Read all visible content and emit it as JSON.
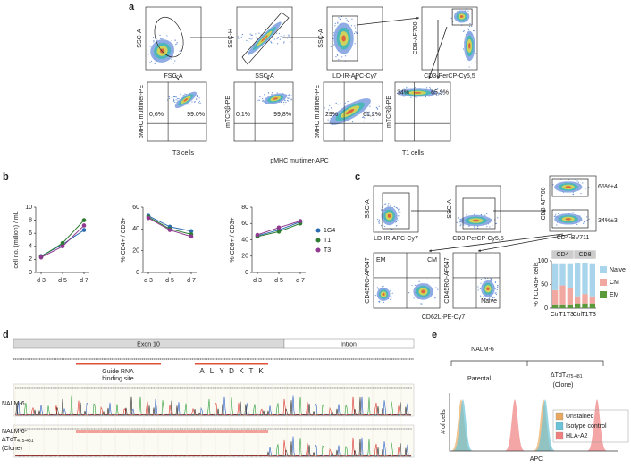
{
  "figure": {
    "a": {
      "label": "a",
      "plots": [
        {
          "y": "SSC-A",
          "x": "FSC-A"
        },
        {
          "y": "SSC-H",
          "x": "SSC-A"
        },
        {
          "y": "SSC-A",
          "x": "LD-IR-APC-Cy7"
        },
        {
          "y": "CD8-AF700",
          "x": "CD3-PerCP-Cy5,5"
        },
        {
          "y": "pMHC multimer-PE",
          "gates": [
            "0,6%",
            "99.0%"
          ]
        },
        {
          "y": "mTCRβ-PE",
          "gates": [
            "0,1%",
            "99,8%"
          ]
        },
        {
          "y": "pMHC multimer-PE",
          "gates": [
            "29%",
            "61,2%"
          ]
        },
        {
          "y": "mTCRβ-PE",
          "gates": [
            "34%",
            "65,9%"
          ]
        }
      ],
      "captions": [
        "T3 cells",
        "pMHC multimer-APC",
        "T1 cells"
      ]
    },
    "b": {
      "label": "b"
    },
    "c": {
      "label": "c",
      "plots": [
        {
          "y": "SSC-A",
          "x": "LD-IR-APC-Cy7"
        },
        {
          "y": "SSC-A",
          "x": "CD3-PerCP-Cy5,5"
        },
        {
          "y": "CD8-AF700",
          "x": "CD4-BV711",
          "gates": [
            "65%±4",
            "34%±3"
          ]
        },
        {
          "y": "CD45RO-AF647",
          "gates": [
            "EM",
            "CM"
          ]
        },
        {
          "y": "CD45RO-AF647",
          "gates": [
            "Naive"
          ]
        }
      ],
      "shared_x": "CD62L-PE-Cy7"
    },
    "d": {
      "label": "d",
      "regions": [
        "Exon 10",
        "Intron"
      ],
      "guide": "Guide RNA\nbinding site",
      "protein": [
        "A",
        "L",
        "Y",
        "D",
        "K",
        "T",
        "K"
      ],
      "samples": [
        {
          "main": "NALM-6"
        },
        {
          "prefix": "NALM-6-",
          "main": "ΔTdT",
          "sub": "475-481",
          "suffix": "(Clone)"
        }
      ]
    },
    "e": {
      "label": "e",
      "title": "NALM-6",
      "groups": [
        {
          "main": "Parental"
        },
        {
          "main": "ΔTdT",
          "sub": "475-481",
          "suffix": "(Clone)"
        }
      ],
      "ylabel": "# of cells",
      "xlabel": "APC",
      "legend": [
        {
          "name": "Unstained",
          "color": "#e8a860"
        },
        {
          "name": "Isotype control",
          "color": "#6ac3d8"
        },
        {
          "name": "HLA-A2",
          "color": "#f08080"
        }
      ]
    }
  },
  "chart_data": [
    {
      "type": "line",
      "ylabel": "cell no. (million) / mL",
      "categories": [
        "d 3",
        "d 5",
        "d 7"
      ],
      "ylim": [
        0,
        10
      ],
      "yticks": [
        0,
        2,
        4,
        6,
        8,
        10
      ],
      "series": [
        {
          "color": "#2b6cb0",
          "values": [
            2.5,
            4.3,
            6.5
          ]
        },
        {
          "color": "#2e7d32",
          "values": [
            2.4,
            4.5,
            8.0
          ]
        },
        {
          "color": "#8e3a8e",
          "values": [
            2.3,
            4.0,
            7.2
          ]
        }
      ]
    },
    {
      "type": "line",
      "ylabel": "% CD4+ / CD3+",
      "categories": [
        "d 3",
        "d 5",
        "d 7"
      ],
      "ylim": [
        0,
        60
      ],
      "yticks": [
        0,
        20,
        40,
        60
      ],
      "series": [
        {
          "color": "#2b6cb0",
          "values": [
            52,
            42,
            38
          ]
        },
        {
          "color": "#2e7d32",
          "values": [
            51,
            40,
            35
          ]
        },
        {
          "color": "#8e3a8e",
          "values": [
            50,
            39,
            33
          ]
        }
      ]
    },
    {
      "type": "line",
      "ylabel": "% CD8+ / CD3+",
      "categories": [
        "d 3",
        "d 5",
        "d 7"
      ],
      "ylim": [
        0,
        80
      ],
      "yticks": [
        0,
        20,
        40,
        60,
        80
      ],
      "series": [
        {
          "name": "1G4",
          "color": "#2b6cb0",
          "values": [
            45,
            52,
            62
          ]
        },
        {
          "name": "T1",
          "color": "#2e7d32",
          "values": [
            44,
            50,
            60
          ]
        },
        {
          "name": "T3",
          "color": "#8e3a8e",
          "values": [
            46,
            55,
            63
          ]
        }
      ]
    },
    {
      "type": "stacked_bar",
      "ylabel": "% hCD45+ cells",
      "groups": [
        "CD4",
        "CD8"
      ],
      "categories": [
        "Ctrl",
        "T1",
        "T3",
        "Ctrl",
        "T1",
        "T3"
      ],
      "ylim": [
        0,
        100
      ],
      "yticks": [
        0,
        50,
        100
      ],
      "series": [
        {
          "name": "Naive",
          "color": "#a8d4ec",
          "values": [
            55,
            45,
            50,
            70,
            65,
            68
          ]
        },
        {
          "name": "CM",
          "color": "#f0a8a0",
          "values": [
            30,
            40,
            35,
            15,
            20,
            15
          ]
        },
        {
          "name": "EM",
          "color": "#5a9a3a",
          "values": [
            8,
            8,
            8,
            10,
            10,
            10
          ]
        }
      ]
    }
  ]
}
